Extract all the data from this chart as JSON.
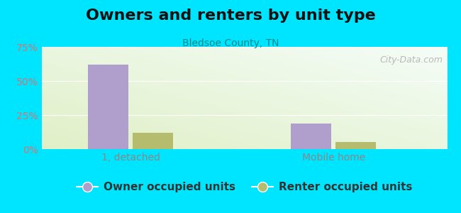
{
  "title": "Owners and renters by unit type",
  "subtitle": "Bledsoe County, TN",
  "categories": [
    "1, detached",
    "Mobile home"
  ],
  "owner_values": [
    62,
    19
  ],
  "renter_values": [
    12,
    5
  ],
  "owner_color": "#b09fcc",
  "renter_color": "#b5bc6e",
  "ylim": [
    0,
    75
  ],
  "yticks": [
    0,
    25,
    50,
    75
  ],
  "ytick_labels": [
    "0%",
    "25%",
    "50%",
    "75%"
  ],
  "background_outer": "#00e5ff",
  "grid_color": "#ffffff",
  "title_fontsize": 16,
  "subtitle_fontsize": 10,
  "legend_fontsize": 11,
  "tick_fontsize": 10,
  "ytick_color": "#cc7777",
  "xtick_color": "#888888",
  "subtitle_color": "#008888",
  "watermark": "City-Data.com"
}
